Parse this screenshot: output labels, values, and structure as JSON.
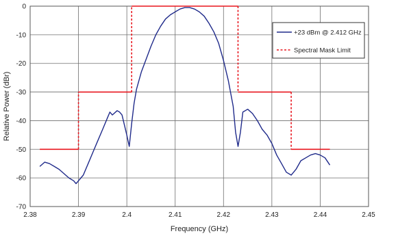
{
  "chart_data": {
    "type": "line",
    "title": "",
    "xlabel": "Frequency (GHz)",
    "ylabel": "Relative Power (dBr)",
    "xlim": [
      2.38,
      2.45
    ],
    "ylim": [
      -70,
      0
    ],
    "x_ticks": [
      2.38,
      2.39,
      2.4,
      2.41,
      2.42,
      2.43,
      2.44,
      2.45
    ],
    "x_tick_labels": [
      "2.38",
      "2.39",
      "2.4",
      "2.41",
      "2.42",
      "2.43",
      "2.44",
      "2.45"
    ],
    "y_ticks": [
      0,
      -10,
      -20,
      -30,
      -40,
      -50,
      -60,
      -70
    ],
    "y_tick_labels": [
      "0",
      "-10",
      "-20",
      "-30",
      "-40",
      "-50",
      "-60",
      "-70"
    ],
    "grid": "on",
    "legend_position": "top-right",
    "series": [
      {
        "name": "+23 dBm @ 2.412 GHz",
        "color": "#1f2a8a",
        "style": "solid",
        "x": [
          2.382,
          2.383,
          2.384,
          2.385,
          2.386,
          2.387,
          2.388,
          2.389,
          2.3895,
          2.39,
          2.391,
          2.392,
          2.393,
          2.394,
          2.395,
          2.396,
          2.3965,
          2.397,
          2.398,
          2.3985,
          2.399,
          2.4,
          2.4005,
          2.401,
          2.4015,
          2.402,
          2.403,
          2.404,
          2.405,
          2.406,
          2.407,
          2.408,
          2.409,
          2.41,
          2.411,
          2.412,
          2.413,
          2.414,
          2.415,
          2.416,
          2.417,
          2.418,
          2.419,
          2.42,
          2.421,
          2.422,
          2.4225,
          2.423,
          2.4235,
          2.424,
          2.425,
          2.426,
          2.427,
          2.428,
          2.429,
          2.43,
          2.431,
          2.432,
          2.433,
          2.434,
          2.435,
          2.436,
          2.437,
          2.438,
          2.439,
          2.44,
          2.441,
          2.442
        ],
        "y": [
          -56,
          -54.5,
          -55,
          -56,
          -57,
          -58.5,
          -60,
          -61,
          -62,
          -61,
          -59,
          -55,
          -51,
          -47,
          -43,
          -39,
          -37,
          -38,
          -36.5,
          -37,
          -38,
          -45,
          -49,
          -41,
          -34,
          -29,
          -23,
          -18.5,
          -14,
          -10,
          -7,
          -4.5,
          -3,
          -2,
          -1,
          -0.5,
          -0.5,
          -1,
          -2,
          -3.5,
          -6,
          -9,
          -13,
          -19,
          -26,
          -35,
          -44,
          -49,
          -44,
          -37,
          -36,
          -37.5,
          -40,
          -43,
          -45,
          -48,
          -52,
          -55,
          -58,
          -59,
          -57,
          -54,
          -53,
          -52,
          -51.5,
          -52,
          -53,
          -55.5
        ]
      },
      {
        "name": "Spectral Mask Limit",
        "color": "#e8141c",
        "style": "dashed",
        "x": [
          2.382,
          2.39,
          2.39,
          2.401,
          2.401,
          2.423,
          2.423,
          2.434,
          2.434,
          2.442
        ],
        "y": [
          -50,
          -50,
          -30,
          -30,
          0,
          0,
          -30,
          -30,
          -50,
          -50
        ]
      }
    ]
  }
}
